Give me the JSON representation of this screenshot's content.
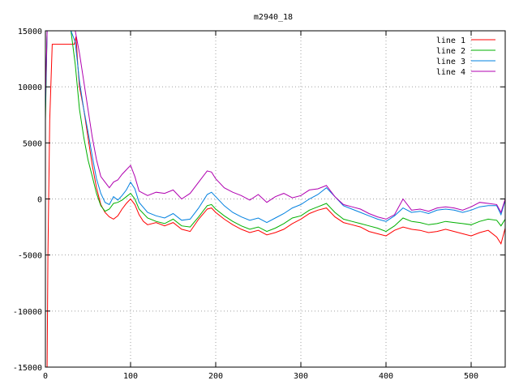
{
  "chart_data": {
    "type": "line",
    "title": "m2940_18",
    "xlabel": "",
    "ylabel": "",
    "xlim": [
      0,
      540
    ],
    "ylim": [
      -15000,
      15000
    ],
    "xticks": [
      0,
      100,
      200,
      300,
      400,
      500
    ],
    "yticks": [
      -15000,
      -10000,
      -5000,
      0,
      5000,
      10000,
      15000
    ],
    "grid": true,
    "legend_position": "top-right",
    "series": [
      {
        "name": "line 1",
        "color": "#ff0000",
        "x": [
          0,
          2,
          3,
          5,
          8,
          10,
          15,
          20,
          25,
          30,
          34,
          36,
          38,
          40,
          45,
          50,
          55,
          60,
          65,
          70,
          75,
          80,
          85,
          90,
          95,
          100,
          105,
          110,
          115,
          120,
          130,
          140,
          150,
          160,
          170,
          180,
          190,
          195,
          200,
          210,
          220,
          230,
          240,
          250,
          260,
          270,
          280,
          290,
          300,
          310,
          320,
          330,
          340,
          350,
          360,
          370,
          380,
          390,
          400,
          410,
          420,
          430,
          440,
          450,
          460,
          470,
          480,
          490,
          500,
          510,
          520,
          530,
          535,
          540
        ],
        "y": [
          -15000,
          -15000,
          -5000,
          7000,
          13800,
          13800,
          13800,
          13800,
          13800,
          13800,
          13800,
          14500,
          12000,
          10000,
          8000,
          5500,
          3000,
          1000,
          -500,
          -1200,
          -1600,
          -1800,
          -1500,
          -900,
          -400,
          0,
          -500,
          -1400,
          -2000,
          -2300,
          -2100,
          -2400,
          -2100,
          -2700,
          -2900,
          -1800,
          -900,
          -800,
          -1200,
          -1800,
          -2300,
          -2700,
          -3000,
          -2800,
          -3200,
          -3000,
          -2700,
          -2200,
          -1800,
          -1300,
          -1000,
          -800,
          -1600,
          -2100,
          -2300,
          -2500,
          -2900,
          -3100,
          -3300,
          -2800,
          -2500,
          -2700,
          -2800,
          -3000,
          -2900,
          -2700,
          -2900,
          -3100,
          -3300,
          -3000,
          -2800,
          -3400,
          -4000,
          -2600
        ]
      },
      {
        "name": "line 2",
        "color": "#00b000",
        "x": [
          0,
          2,
          4,
          6,
          8,
          10,
          15,
          20,
          25,
          30,
          35,
          40,
          45,
          50,
          55,
          60,
          65,
          70,
          75,
          80,
          85,
          90,
          95,
          100,
          105,
          110,
          120,
          130,
          140,
          150,
          160,
          170,
          180,
          190,
          195,
          200,
          210,
          220,
          230,
          240,
          250,
          260,
          270,
          280,
          290,
          300,
          310,
          320,
          330,
          340,
          350,
          360,
          370,
          380,
          390,
          400,
          410,
          420,
          430,
          440,
          450,
          460,
          470,
          480,
          490,
          500,
          510,
          520,
          530,
          535,
          540
        ],
        "y": [
          7000,
          15000,
          15000,
          15000,
          15000,
          15000,
          15000,
          15000,
          15000,
          15000,
          12000,
          8000,
          5500,
          3500,
          2000,
          500,
          -600,
          -1100,
          -900,
          -400,
          -300,
          -100,
          200,
          500,
          0,
          -900,
          -1700,
          -2000,
          -2200,
          -1800,
          -2400,
          -2500,
          -1600,
          -600,
          -500,
          -900,
          -1500,
          -2000,
          -2400,
          -2700,
          -2500,
          -2900,
          -2600,
          -2200,
          -1700,
          -1500,
          -1000,
          -700,
          -400,
          -1200,
          -1800,
          -2000,
          -2200,
          -2400,
          -2600,
          -2900,
          -2400,
          -1700,
          -2000,
          -2100,
          -2300,
          -2200,
          -2000,
          -2100,
          -2200,
          -2300,
          -2000,
          -1800,
          -1900,
          -2400,
          -1800
        ]
      },
      {
        "name": "line 3",
        "color": "#0080e0",
        "x": [
          0,
          2,
          4,
          6,
          8,
          10,
          15,
          20,
          25,
          30,
          35,
          40,
          45,
          50,
          55,
          60,
          65,
          70,
          75,
          80,
          85,
          90,
          95,
          100,
          105,
          110,
          120,
          130,
          140,
          150,
          160,
          170,
          180,
          190,
          195,
          200,
          210,
          220,
          230,
          240,
          250,
          260,
          270,
          280,
          290,
          300,
          310,
          320,
          330,
          340,
          350,
          360,
          370,
          380,
          390,
          400,
          410,
          420,
          430,
          440,
          450,
          460,
          470,
          480,
          490,
          500,
          510,
          520,
          530,
          535,
          540
        ],
        "y": [
          8000,
          15000,
          15000,
          15000,
          15000,
          15000,
          15000,
          15000,
          15000,
          15000,
          14000,
          10500,
          8000,
          6000,
          3800,
          1800,
          500,
          -300,
          -500,
          200,
          -100,
          300,
          800,
          1500,
          900,
          -300,
          -1200,
          -1500,
          -1700,
          -1300,
          -1900,
          -1800,
          -800,
          400,
          600,
          200,
          -600,
          -1200,
          -1600,
          -1900,
          -1700,
          -2100,
          -1700,
          -1300,
          -800,
          -500,
          0,
          400,
          1000,
          200,
          -600,
          -900,
          -1200,
          -1500,
          -1800,
          -2000,
          -1500,
          -800,
          -1200,
          -1100,
          -1300,
          -1000,
          -900,
          -1000,
          -1200,
          -1000,
          -700,
          -600,
          -600,
          -1400,
          -100
        ]
      },
      {
        "name": "line 4",
        "color": "#b000b0",
        "x": [
          0,
          2,
          4,
          6,
          8,
          10,
          15,
          20,
          25,
          30,
          35,
          40,
          45,
          50,
          55,
          60,
          65,
          70,
          75,
          80,
          85,
          90,
          95,
          100,
          105,
          110,
          120,
          130,
          140,
          150,
          160,
          170,
          180,
          190,
          195,
          200,
          210,
          220,
          230,
          240,
          250,
          260,
          270,
          280,
          290,
          300,
          310,
          320,
          330,
          340,
          350,
          360,
          370,
          380,
          390,
          400,
          410,
          420,
          430,
          440,
          450,
          460,
          470,
          480,
          490,
          500,
          510,
          520,
          530,
          535,
          540
        ],
        "y": [
          9000,
          15000,
          15000,
          15000,
          15000,
          15000,
          15000,
          15000,
          15000,
          15000,
          15000,
          13000,
          10500,
          8000,
          5500,
          3500,
          2000,
          1500,
          1000,
          1500,
          1700,
          2200,
          2600,
          3000,
          2000,
          700,
          300,
          600,
          500,
          800,
          0,
          500,
          1500,
          2500,
          2400,
          1800,
          1000,
          600,
          300,
          -100,
          400,
          -300,
          200,
          500,
          100,
          300,
          800,
          900,
          1200,
          200,
          -500,
          -700,
          -900,
          -1300,
          -1600,
          -1800,
          -1400,
          0,
          -1000,
          -900,
          -1100,
          -800,
          -700,
          -800,
          -1000,
          -700,
          -300,
          -400,
          -500,
          -1200,
          0
        ]
      }
    ]
  }
}
